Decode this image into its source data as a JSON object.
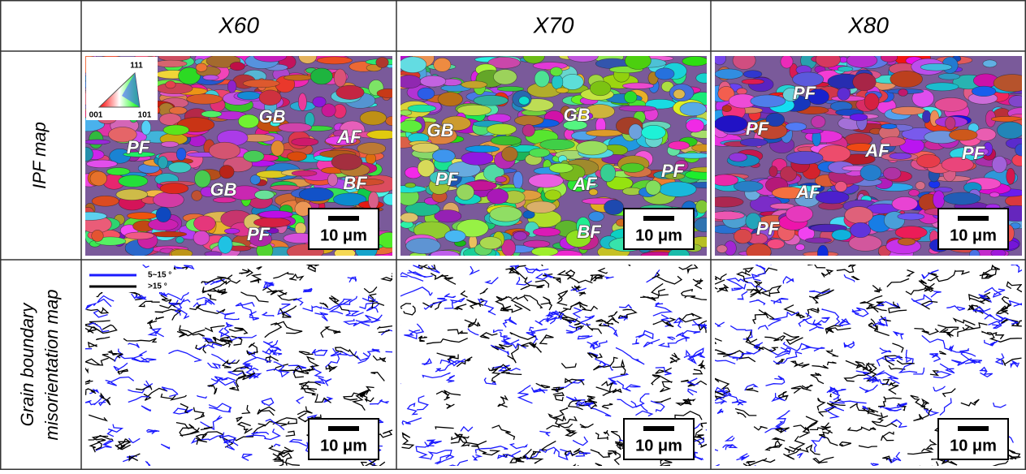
{
  "table": {
    "columns": [
      "X60",
      "X70",
      "X80"
    ],
    "rows": [
      {
        "label": [
          "IPF map"
        ],
        "panels": [
          {
            "labels": [
              "GB",
              "PF",
              "AF",
              "BF",
              "GB",
              "PF"
            ],
            "scale": "10 μm"
          },
          {
            "labels": [
              "GB",
              "GB",
              "PF",
              "AF",
              "PF",
              "BF"
            ],
            "scale": "10 μm"
          },
          {
            "labels": [
              "PF",
              "PF",
              "AF",
              "PF",
              "AF",
              "PF"
            ],
            "scale": "10 μm"
          }
        ]
      },
      {
        "label": [
          "Grain boundary",
          "misorientation map"
        ],
        "panels": [
          {
            "scale": "10 μm"
          },
          {
            "scale": "10 μm"
          },
          {
            "scale": "10 μm"
          }
        ]
      }
    ]
  },
  "ipf_legend": {
    "top": "111",
    "left": "001",
    "right": "101"
  },
  "boundary_legend": [
    "5~15 °",
    ">15 °"
  ]
}
